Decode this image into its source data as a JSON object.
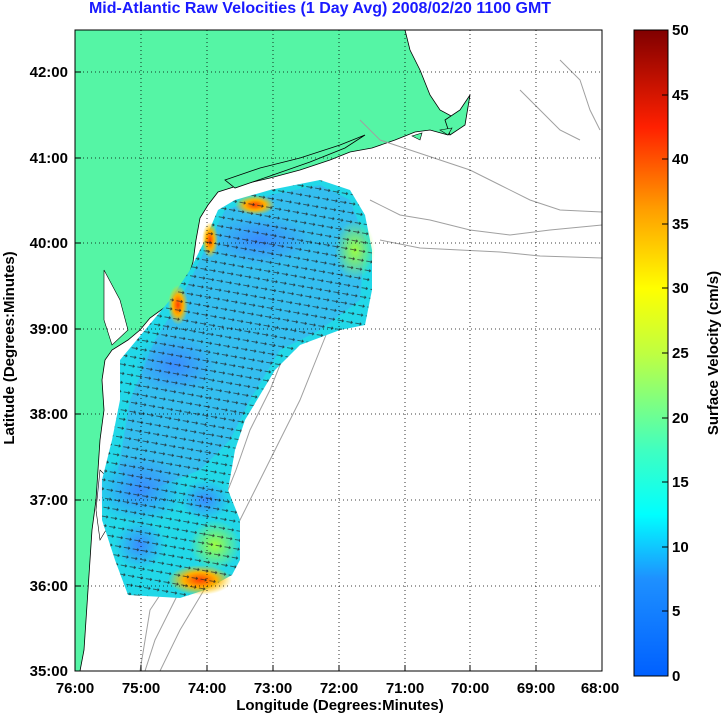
{
  "title": "Mid-Atlantic Raw Velocities (1 Day Avg) 2008/02/20 1100 GMT",
  "axes": {
    "xlabel": "Longitude (Degrees:Minutes)",
    "ylabel": "Latitude (Degrees:Minutes)",
    "x_ticks": [
      "76:00",
      "75:00",
      "74:00",
      "73:00",
      "72:00",
      "71:00",
      "70:00",
      "69:00",
      "68:00"
    ],
    "y_ticks": [
      "42:00",
      "41:00",
      "40:00",
      "39:00",
      "38:00",
      "37:00",
      "36:00",
      "35:00"
    ],
    "xlim": [
      "76:00 W",
      "68:00 W"
    ],
    "ylim": [
      "35:00 N",
      "42:30 N"
    ],
    "grid": "dotted"
  },
  "colorbar": {
    "label": "Surface Velocity (cm/s)",
    "ticks": [
      "0",
      "5",
      "10",
      "15",
      "20",
      "25",
      "30",
      "35",
      "40",
      "45",
      "50"
    ],
    "range": [
      0,
      50
    ],
    "colormap": "jet"
  },
  "colors": {
    "land": "#55f5a5",
    "water": "#ffffff",
    "title": "#1a1aff",
    "contour": "#a0a0a0"
  }
}
